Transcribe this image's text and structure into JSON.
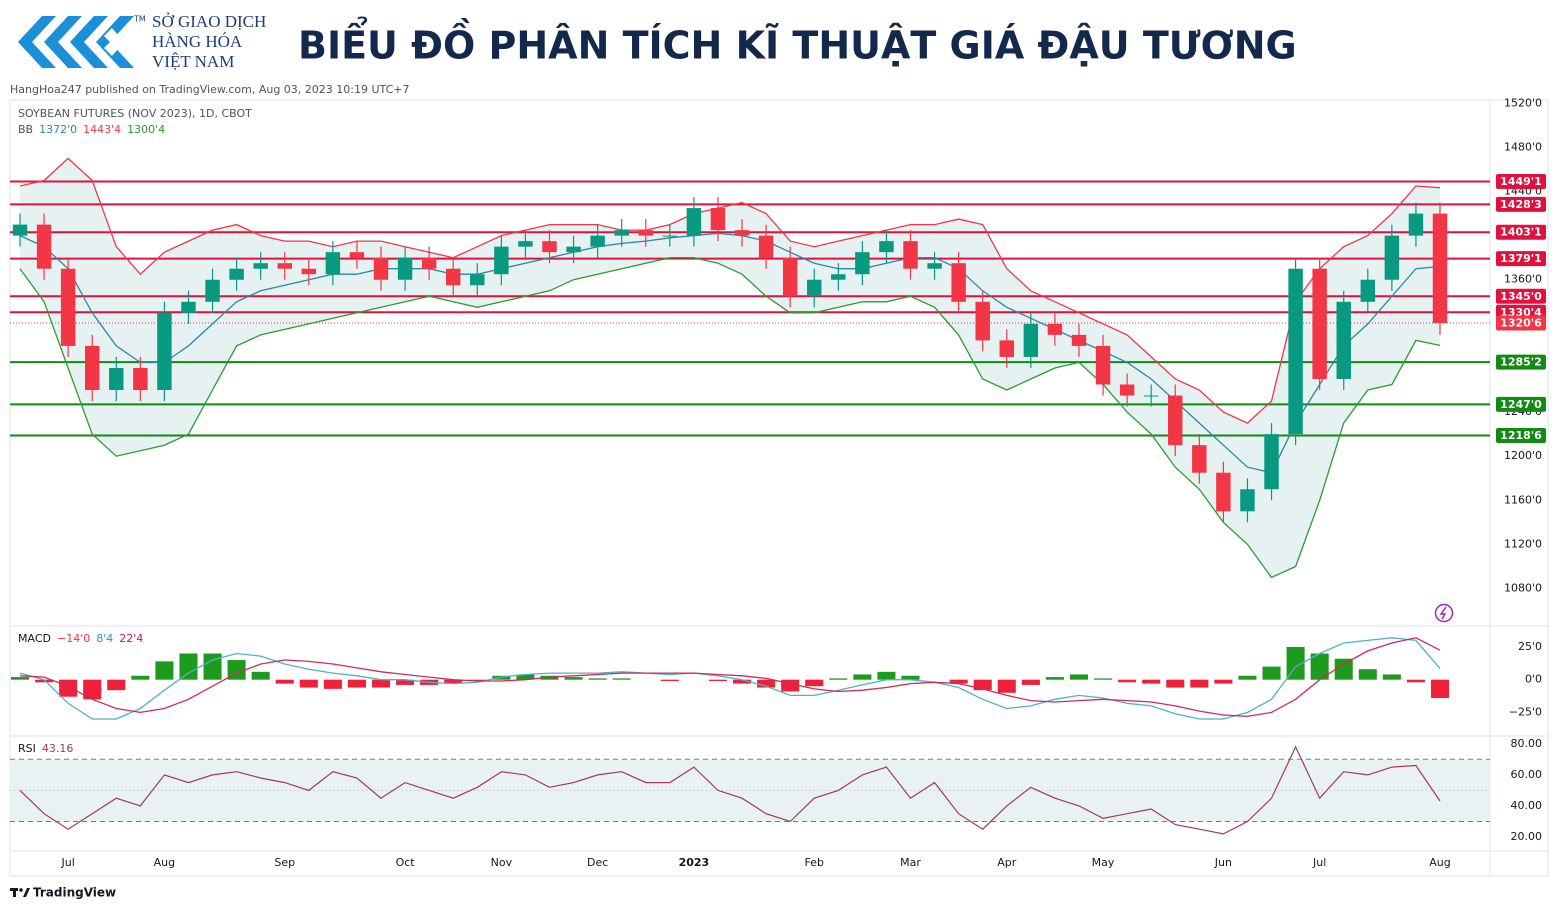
{
  "header": {
    "logo_lines": [
      "SỞ GIAO DỊCH",
      "HÀNG HÓA",
      "VIỆT NAM"
    ],
    "trademark": "TM",
    "title": "BIỂU ĐỒ PHÂN TÍCH KĨ THUẬT GIÁ ĐẬU TƯƠNG",
    "published": "HangHoa247 published on TradingView.com, Aug 03, 2023 10:19 UTC+7"
  },
  "footer": "TradingView",
  "chart_data": [
    {
      "type": "candlestick",
      "title": "SOYBEAN FUTURES (NOV 2023), 1D, CBOT",
      "categories": [
        null,
        null,
        "Jul",
        null,
        null,
        null,
        "Aug",
        null,
        null,
        null,
        null,
        "Sep",
        null,
        null,
        null,
        null,
        "Oct",
        null,
        null,
        null,
        "Nov",
        null,
        null,
        null,
        "Dec",
        null,
        null,
        null,
        "2023",
        null,
        null,
        null,
        null,
        "Feb",
        null,
        null,
        null,
        "Mar",
        null,
        null,
        null,
        "Apr",
        null,
        null,
        null,
        "May",
        null,
        null,
        null,
        null,
        "Jun",
        null,
        null,
        null,
        "Jul",
        null,
        null,
        null,
        null,
        "Aug"
      ],
      "open": [
        1400,
        1410,
        1370,
        1300,
        1260,
        1280,
        1260,
        1330,
        1340,
        1360,
        1370,
        1375,
        1370,
        1365,
        1385,
        1380,
        1360,
        1380,
        1370,
        1355,
        1365,
        1390,
        1395,
        1385,
        1390,
        1400,
        1405,
        1400,
        1400,
        1425,
        1405,
        1400,
        1380,
        1345,
        1360,
        1365,
        1385,
        1395,
        1370,
        1375,
        1340,
        1305,
        1290,
        1320,
        1310,
        1300,
        1265,
        1255,
        1255,
        1210,
        1185,
        1150,
        1170,
        1220,
        1370,
        1270,
        1340,
        1360,
        1400,
        1420
      ],
      "high": [
        1420,
        1420,
        1380,
        1310,
        1290,
        1290,
        1340,
        1350,
        1370,
        1380,
        1385,
        1385,
        1380,
        1395,
        1395,
        1390,
        1390,
        1390,
        1380,
        1375,
        1400,
        1405,
        1405,
        1400,
        1410,
        1415,
        1415,
        1410,
        1435,
        1435,
        1415,
        1410,
        1390,
        1370,
        1375,
        1395,
        1405,
        1405,
        1385,
        1385,
        1350,
        1315,
        1330,
        1330,
        1320,
        1310,
        1275,
        1265,
        1265,
        1220,
        1195,
        1180,
        1230,
        1380,
        1380,
        1350,
        1370,
        1410,
        1430,
        1430
      ],
      "low": [
        1390,
        1360,
        1290,
        1250,
        1250,
        1250,
        1250,
        1320,
        1330,
        1350,
        1360,
        1360,
        1355,
        1355,
        1370,
        1350,
        1350,
        1360,
        1345,
        1345,
        1355,
        1380,
        1375,
        1375,
        1380,
        1390,
        1390,
        1390,
        1390,
        1395,
        1390,
        1370,
        1335,
        1335,
        1350,
        1355,
        1375,
        1360,
        1360,
        1330,
        1295,
        1280,
        1280,
        1300,
        1290,
        1255,
        1245,
        1245,
        1200,
        1175,
        1140,
        1140,
        1160,
        1210,
        1260,
        1260,
        1330,
        1350,
        1390,
        1310
      ],
      "close": [
        1410,
        1370,
        1300,
        1260,
        1280,
        1260,
        1330,
        1340,
        1360,
        1370,
        1375,
        1370,
        1365,
        1385,
        1380,
        1360,
        1380,
        1370,
        1355,
        1365,
        1390,
        1395,
        1385,
        1390,
        1400,
        1405,
        1400,
        1400,
        1425,
        1405,
        1400,
        1380,
        1345,
        1360,
        1365,
        1385,
        1395,
        1370,
        1375,
        1340,
        1305,
        1290,
        1320,
        1310,
        1300,
        1265,
        1255,
        1255,
        1210,
        1185,
        1150,
        1170,
        1220,
        1370,
        1270,
        1340,
        1360,
        1400,
        1420,
        1320.75
      ],
      "up_color": "#089981",
      "down_color": "#f23645",
      "indicator": "BB",
      "band_fill": "#e6f2f1",
      "series": [
        {
          "color": "#2b87a8",
          "legend_value": "1372'0",
          "values": [
            1400,
            1390,
            1370,
            1330,
            1300,
            1285,
            1285,
            1300,
            1320,
            1340,
            1350,
            1355,
            1360,
            1365,
            1365,
            1370,
            1370,
            1370,
            1365,
            1365,
            1370,
            1375,
            1380,
            1385,
            1390,
            1393,
            1395,
            1398,
            1400,
            1402,
            1400,
            1395,
            1385,
            1375,
            1370,
            1370,
            1375,
            1380,
            1380,
            1370,
            1350,
            1335,
            1325,
            1315,
            1305,
            1295,
            1285,
            1270,
            1250,
            1230,
            1210,
            1190,
            1185,
            1230,
            1265,
            1300,
            1320,
            1345,
            1370,
            1372
          ]
        },
        {
          "color": "#f23645",
          "legend_value": "1443'4",
          "values": [
            1445,
            1450,
            1470,
            1450,
            1390,
            1365,
            1385,
            1395,
            1405,
            1410,
            1400,
            1395,
            1395,
            1390,
            1395,
            1395,
            1390,
            1385,
            1380,
            1390,
            1400,
            1405,
            1410,
            1410,
            1410,
            1405,
            1405,
            1410,
            1420,
            1425,
            1430,
            1420,
            1395,
            1390,
            1395,
            1400,
            1405,
            1410,
            1410,
            1415,
            1410,
            1370,
            1350,
            1340,
            1330,
            1320,
            1310,
            1290,
            1270,
            1260,
            1240,
            1230,
            1250,
            1340,
            1370,
            1390,
            1400,
            1420,
            1445,
            1443.5
          ]
        },
        {
          "color": "#2e9b2e",
          "legend_value": "1300'4",
          "values": [
            1370,
            1340,
            1280,
            1220,
            1200,
            1205,
            1210,
            1220,
            1260,
            1300,
            1310,
            1315,
            1320,
            1325,
            1330,
            1335,
            1340,
            1345,
            1340,
            1335,
            1340,
            1345,
            1350,
            1360,
            1365,
            1370,
            1375,
            1380,
            1380,
            1375,
            1365,
            1345,
            1330,
            1330,
            1335,
            1340,
            1340,
            1345,
            1335,
            1310,
            1270,
            1260,
            1270,
            1280,
            1285,
            1265,
            1240,
            1220,
            1190,
            1170,
            1140,
            1120,
            1090,
            1100,
            1160,
            1230,
            1260,
            1265,
            1305,
            1300.5
          ]
        }
      ],
      "levels": [
        {
          "value": 1449.125,
          "label": "1449'1",
          "color": "#e0103f"
        },
        {
          "value": 1428.375,
          "label": "1428'3",
          "color": "#e0103f"
        },
        {
          "value": 1403.125,
          "label": "1403'1",
          "color": "#e0103f"
        },
        {
          "value": 1379.125,
          "label": "1379'1",
          "color": "#e0103f"
        },
        {
          "value": 1345,
          "label": "1345'0",
          "color": "#e0103f"
        },
        {
          "value": 1330.5,
          "label": "1330'4",
          "color": "#e0103f"
        },
        {
          "value": 1320.75,
          "label": "1320'6",
          "color": "#f23645",
          "style": "dotted"
        },
        {
          "value": 1285.25,
          "label": "1285'2",
          "color": "#138a13"
        },
        {
          "value": 1247,
          "label": "1247'0",
          "color": "#138a13"
        },
        {
          "value": 1218.75,
          "label": "1218'6",
          "color": "#138a13"
        }
      ],
      "ylim": [
        1046,
        1523
      ],
      "yticks": [
        {
          "value": 1520,
          "label": "1520'0"
        },
        {
          "value": 1480,
          "label": "1480'0"
        },
        {
          "value": 1440,
          "label": "1440'0"
        },
        {
          "value": 1360,
          "label": "1360'0"
        },
        {
          "value": 1240,
          "label": "1240'0"
        },
        {
          "value": 1200,
          "label": "1200'0"
        },
        {
          "value": 1160,
          "label": "1160'0"
        },
        {
          "value": 1120,
          "label": "1120'0"
        },
        {
          "value": 1080,
          "label": "1080'0"
        }
      ],
      "grid": false
    },
    {
      "type": "macd",
      "title": "MACD",
      "legend_values": [
        {
          "text": "−14'0",
          "color": "#f23645"
        },
        {
          "text": "8'4",
          "color": "#2b9aa8"
        },
        {
          "text": "22'4",
          "color": "#c2185b"
        }
      ],
      "histogram": [
        2,
        -2,
        -13,
        -15,
        -8,
        3,
        14,
        20,
        20,
        15,
        6,
        -3,
        -6,
        -7,
        -6,
        -6,
        -4,
        -4,
        -3,
        -1,
        3,
        4,
        3,
        2,
        1,
        1,
        0,
        -1,
        0,
        -1,
        -3,
        -6,
        -9,
        -5,
        1,
        4,
        6,
        3,
        0,
        -3,
        -8,
        -10,
        -4,
        2,
        4,
        1,
        -2,
        -3,
        -6,
        -6,
        -3,
        3,
        10,
        25,
        20,
        16,
        8,
        4,
        -2,
        -14
      ],
      "hist_up_color": "#1e9a1e",
      "hist_down_color": "#f0203a",
      "series": [
        {
          "color": "#4fb3c4",
          "values": [
            5,
            0,
            -18,
            -30,
            -30,
            -22,
            -8,
            5,
            15,
            20,
            18,
            12,
            8,
            5,
            3,
            0,
            0,
            -2,
            -3,
            -2,
            2,
            4,
            5,
            5,
            5,
            6,
            5,
            4,
            5,
            3,
            0,
            -5,
            -12,
            -12,
            -8,
            -4,
            0,
            0,
            -2,
            -6,
            -15,
            -22,
            -20,
            -15,
            -12,
            -14,
            -18,
            -20,
            -26,
            -30,
            -30,
            -25,
            -15,
            10,
            20,
            28,
            30,
            32,
            30,
            8.5
          ]
        },
        {
          "color": "#d02a5c",
          "values": [
            3,
            2,
            -5,
            -15,
            -22,
            -25,
            -22,
            -15,
            -5,
            5,
            12,
            15,
            14,
            12,
            9,
            6,
            4,
            2,
            0,
            -1,
            -1,
            0,
            2,
            3,
            4,
            5,
            5,
            5,
            5,
            4,
            3,
            1,
            -3,
            -7,
            -9,
            -8,
            -6,
            -3,
            -2,
            -3,
            -7,
            -12,
            -16,
            -17,
            -16,
            -15,
            -16,
            -17,
            -20,
            -24,
            -27,
            -28,
            -25,
            -15,
            0,
            12,
            22,
            28,
            32,
            22.5
          ]
        }
      ],
      "ylim": [
        -43,
        41
      ],
      "yticks": [
        {
          "value": 25,
          "label": "25'0"
        },
        {
          "value": 0,
          "label": "0'0"
        },
        {
          "value": -25,
          "label": "−25'0"
        }
      ],
      "grid": false
    },
    {
      "type": "rsi",
      "title": "RSI",
      "legend_values": [
        {
          "text": "43.16",
          "color": "#a3385e"
        }
      ],
      "color": "#a3385e",
      "values": [
        50,
        35,
        25,
        35,
        45,
        40,
        60,
        55,
        60,
        62,
        58,
        55,
        50,
        62,
        58,
        45,
        55,
        50,
        45,
        52,
        62,
        60,
        52,
        55,
        60,
        62,
        55,
        55,
        65,
        50,
        45,
        35,
        30,
        45,
        50,
        60,
        65,
        45,
        55,
        35,
        25,
        40,
        52,
        45,
        40,
        32,
        35,
        38,
        28,
        25,
        22,
        30,
        45,
        78,
        45,
        62,
        60,
        65,
        66,
        43.16
      ],
      "bands": [
        30,
        70
      ],
      "midline": 50,
      "band_fill": "#e8f2f2",
      "ylim": [
        11,
        85
      ],
      "yticks": [
        {
          "value": 80,
          "label": "80.00"
        },
        {
          "value": 60,
          "label": "60.00"
        },
        {
          "value": 40,
          "label": "40.00"
        },
        {
          "value": 20,
          "label": "20.00"
        }
      ],
      "grid": false
    }
  ]
}
